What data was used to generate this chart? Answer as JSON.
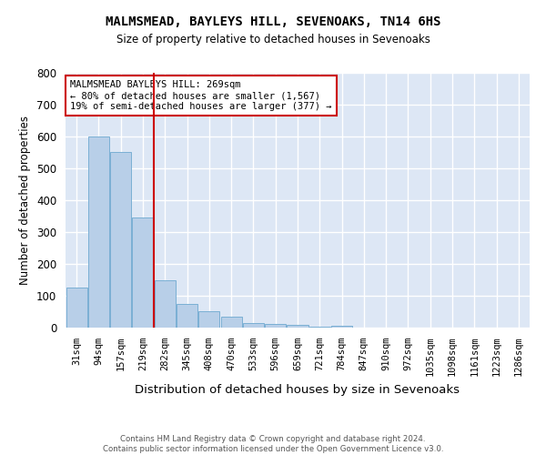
{
  "title": "MALMSMEAD, BAYLEYS HILL, SEVENOAKS, TN14 6HS",
  "subtitle": "Size of property relative to detached houses in Sevenoaks",
  "xlabel": "Distribution of detached houses by size in Sevenoaks",
  "ylabel": "Number of detached properties",
  "categories": [
    "31sqm",
    "94sqm",
    "157sqm",
    "219sqm",
    "282sqm",
    "345sqm",
    "408sqm",
    "470sqm",
    "533sqm",
    "596sqm",
    "659sqm",
    "721sqm",
    "784sqm",
    "847sqm",
    "910sqm",
    "972sqm",
    "1035sqm",
    "1098sqm",
    "1161sqm",
    "1223sqm",
    "1286sqm"
  ],
  "values": [
    125,
    600,
    550,
    345,
    150,
    75,
    52,
    33,
    15,
    12,
    8,
    4,
    7,
    0,
    0,
    0,
    0,
    0,
    0,
    0,
    0
  ],
  "bar_color": "#b8cfe8",
  "bar_edge_color": "#7aafd4",
  "background_color": "#dde7f5",
  "grid_color": "#ffffff",
  "annotation_text": "MALMSMEAD BAYLEYS HILL: 269sqm\n← 80% of detached houses are smaller (1,567)\n19% of semi-detached houses are larger (377) →",
  "vline_color": "#cc0000",
  "annotation_box_edge_color": "#cc0000",
  "footnote": "Contains HM Land Registry data © Crown copyright and database right 2024.\nContains public sector information licensed under the Open Government Licence v3.0.",
  "ylim": [
    0,
    800
  ],
  "yticks": [
    0,
    100,
    200,
    300,
    400,
    500,
    600,
    700,
    800
  ]
}
